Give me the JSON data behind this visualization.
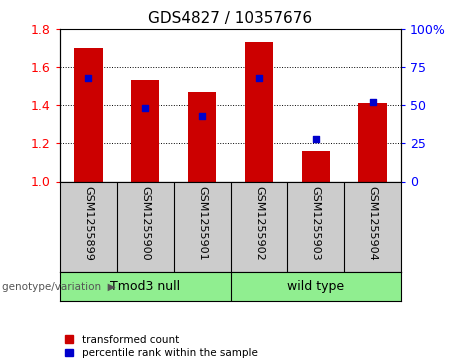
{
  "title": "GDS4827 / 10357676",
  "samples": [
    "GSM1255899",
    "GSM1255900",
    "GSM1255901",
    "GSM1255902",
    "GSM1255903",
    "GSM1255904"
  ],
  "bar_values": [
    1.7,
    1.53,
    1.47,
    1.73,
    1.16,
    1.41
  ],
  "percentile_values": [
    68,
    48,
    43,
    68,
    28,
    52
  ],
  "bar_color": "#cc0000",
  "dot_color": "#0000cc",
  "ylim_left": [
    1.0,
    1.8
  ],
  "ylim_right": [
    0,
    100
  ],
  "yticks_left": [
    1.0,
    1.2,
    1.4,
    1.6,
    1.8
  ],
  "yticks_right": [
    0,
    25,
    50,
    75,
    100
  ],
  "ytick_labels_right": [
    "0",
    "25",
    "50",
    "75",
    "100%"
  ],
  "group_labels": [
    "Tmod3 null",
    "wild type"
  ],
  "group_splits": [
    3
  ],
  "group_label_prefix": "genotype/variation",
  "legend_labels": [
    "transformed count",
    "percentile rank within the sample"
  ],
  "legend_colors": [
    "#cc0000",
    "#0000cc"
  ],
  "bar_width": 0.5,
  "tick_area_color": "#cccccc",
  "group_area_color": "#90ee90",
  "title_fontsize": 11,
  "tick_fontsize": 9,
  "sample_fontsize": 8,
  "label_fontsize": 9
}
